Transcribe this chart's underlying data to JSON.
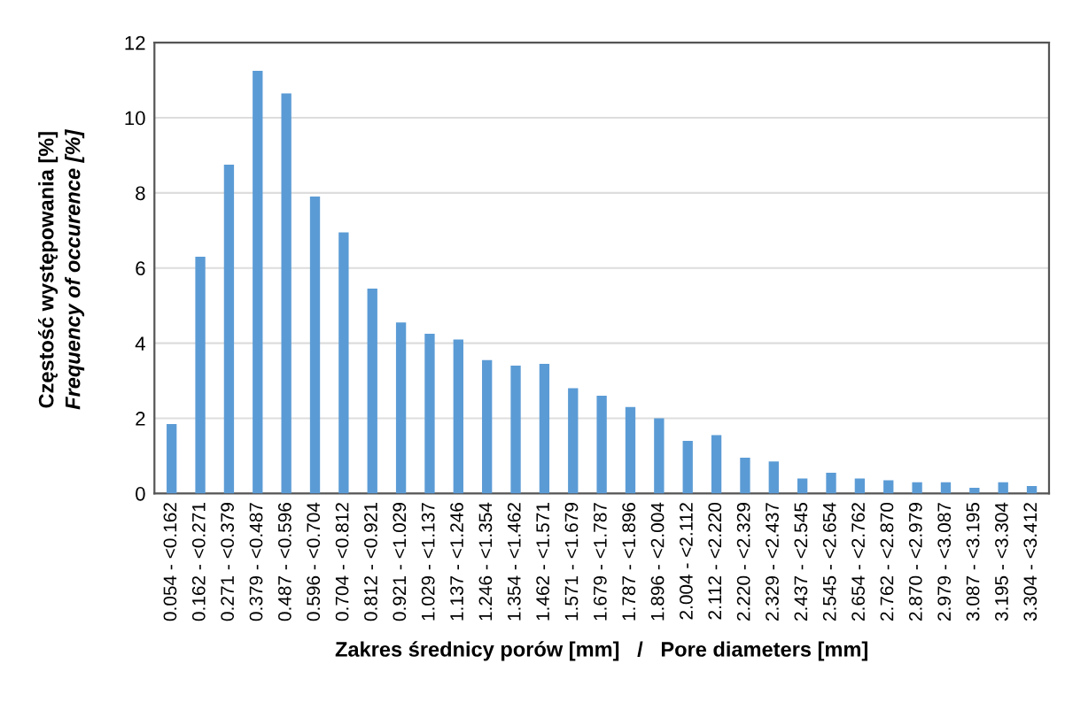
{
  "chart_data": {
    "type": "bar",
    "xlabel": "Zakres średnicy porów [mm]   /   Pore diameters [mm]",
    "ylabel": "Częstość występowania [%]\nFrequency of occurence [%]",
    "categories": [
      "0.054 - <0.162",
      "0.162 - <0.271",
      "0.271 - <0.379",
      "0.379 - <0.487",
      "0.487 - <0.596",
      "0.596 - <0.704",
      "0.704 - <0.812",
      "0.812 - <0.921",
      "0.921 - <1.029",
      "1.029 - <1.137",
      "1.137 - <1.246",
      "1.246 - <1.354",
      "1.354 - <1.462",
      "1.462 - <1.571",
      "1.571 - <1.679",
      "1.679 - <1.787",
      "1.787 - <1.896",
      "1.896 - <2.004",
      "2.004 - <2.112",
      "2.112 - <2.220",
      "2.220 - <2.329",
      "2.329 - <2.437",
      "2.437 - <2.545",
      "2.545 - <2.654",
      "2.654 - <2.762",
      "2.762 - <2.870",
      "2.870 - <2.979",
      "2.979 - <3.087",
      "3.087 - <3.195",
      "3.195 - <3.304",
      "3.304 - <3.412"
    ],
    "values": [
      1.85,
      6.3,
      8.75,
      11.25,
      10.65,
      7.9,
      6.95,
      5.45,
      4.55,
      4.25,
      4.1,
      3.55,
      3.4,
      3.45,
      2.8,
      2.6,
      2.3,
      2.0,
      1.4,
      1.55,
      0.95,
      0.85,
      0.4,
      0.55,
      0.4,
      0.35,
      0.3,
      0.3,
      0.15,
      0.3,
      0.2
    ],
    "color": "#5b9bd5",
    "ylim": [
      0,
      12
    ],
    "yticks": [
      0,
      2,
      4,
      6,
      8,
      10,
      12
    ],
    "grid": "y"
  }
}
